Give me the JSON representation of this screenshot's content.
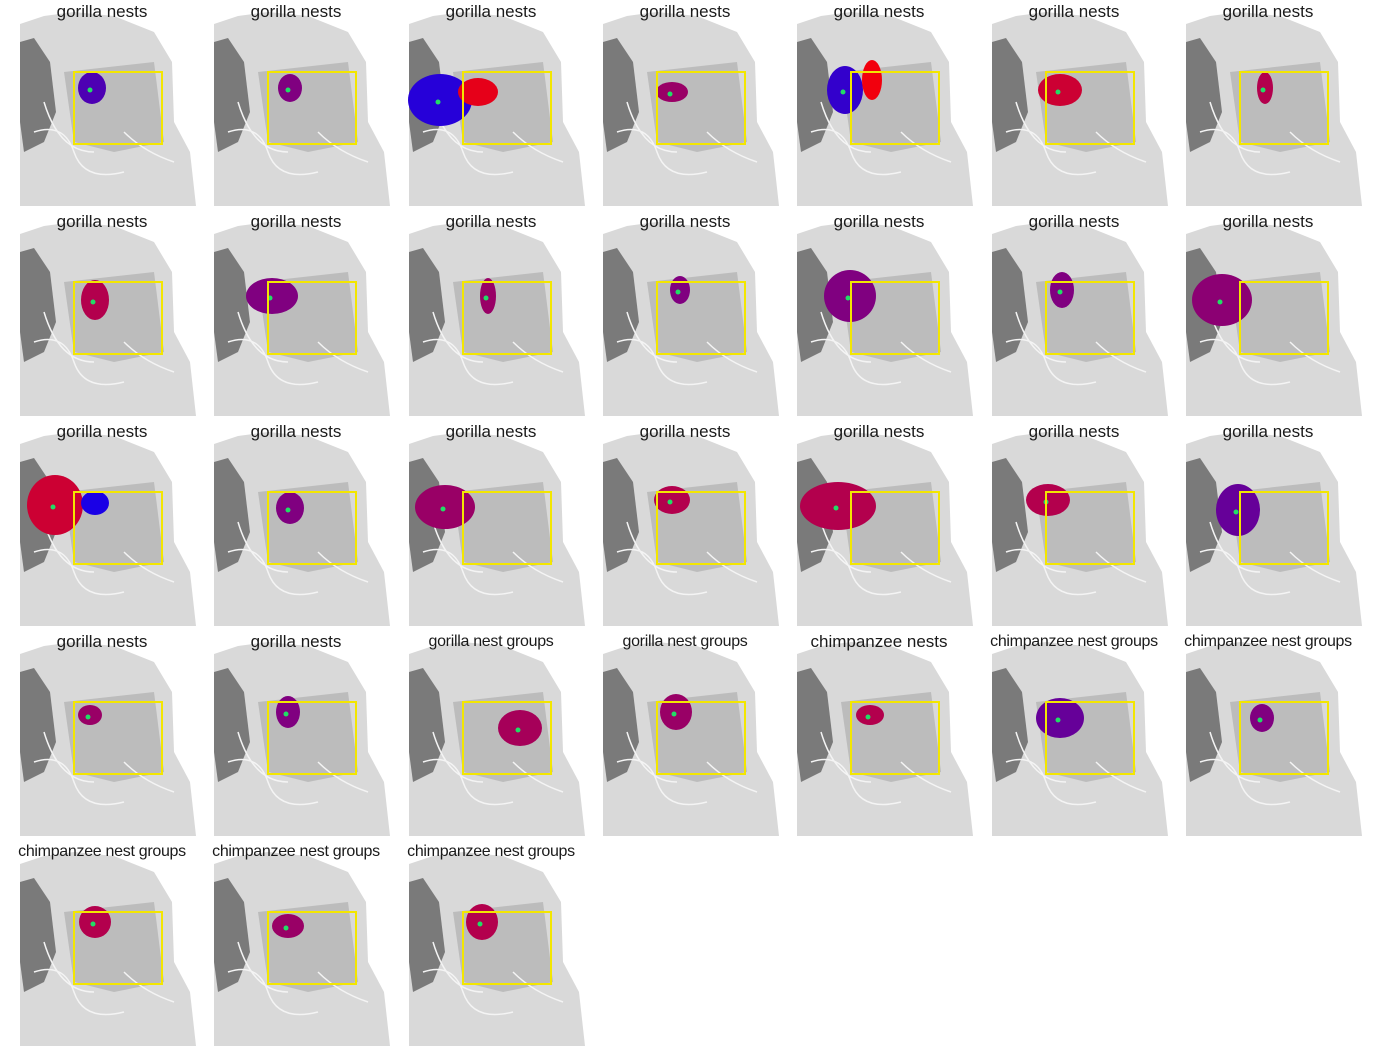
{
  "colors": {
    "study_box": "#f3e600",
    "low": "#0000ff",
    "high": "#ff0000",
    "center_point": "#22dd66",
    "terrain_light": "#f4f4f4",
    "terrain_dark": "#5a5a5a"
  },
  "panels": [
    {
      "title": "gorilla nests"
    },
    {
      "title": "gorilla nests"
    },
    {
      "title": "gorilla nests"
    },
    {
      "title": "gorilla nests"
    },
    {
      "title": "gorilla nests"
    },
    {
      "title": "gorilla nests"
    },
    {
      "title": "gorilla nests"
    },
    {
      "title": "gorilla nests"
    },
    {
      "title": "gorilla nests"
    },
    {
      "title": "gorilla nests"
    },
    {
      "title": "gorilla nests"
    },
    {
      "title": "gorilla nests"
    },
    {
      "title": "gorilla nests"
    },
    {
      "title": "gorilla nests"
    },
    {
      "title": "gorilla nests"
    },
    {
      "title": "gorilla nests"
    },
    {
      "title": "gorilla nests"
    },
    {
      "title": "gorilla nests"
    },
    {
      "title": "gorilla nests"
    },
    {
      "title": "gorilla nests"
    },
    {
      "title": "gorilla nests"
    },
    {
      "title": "gorilla nests"
    },
    {
      "title": "gorilla nests"
    },
    {
      "title": "gorilla nest groups"
    },
    {
      "title": "gorilla nest groups"
    },
    {
      "title": "chimpanzee nests"
    },
    {
      "title": "chimpanzee nest groups"
    },
    {
      "title": "chimpanzee nest groups"
    },
    {
      "title": "chimpanzee nest groups"
    },
    {
      "title": "chimpanzee nest groups"
    },
    {
      "title": "chimpanzee nest groups"
    }
  ]
}
